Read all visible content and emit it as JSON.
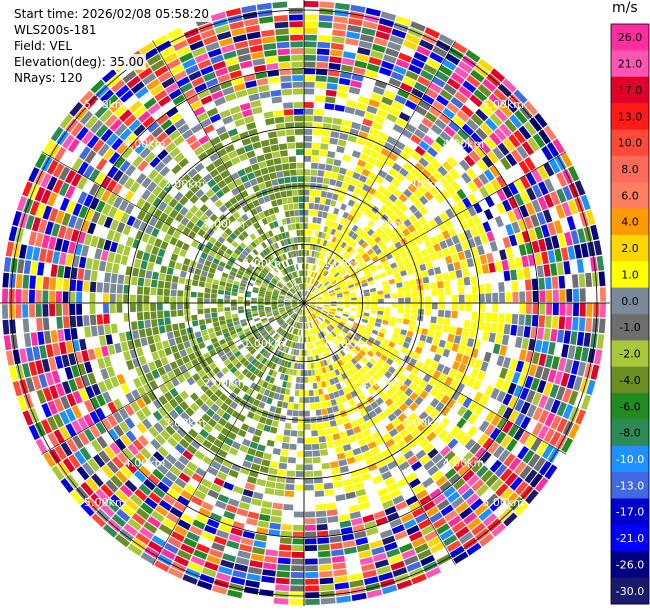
{
  "info": {
    "start_time": "Start time: 2026/02/08 05:58:20",
    "instrument": "WLS200s-181",
    "field": "Field: VEL",
    "elevation": "Elevation(deg): 35.00",
    "nrays": "NRays: 120"
  },
  "chart_data": {
    "type": "ppi",
    "nrays": 120,
    "range_rings_km": [
      1,
      2,
      3,
      4,
      5
    ],
    "ring_label_suffix": "km",
    "ring_labels_shown": [
      "1.00km",
      "2.00km",
      "3.00km",
      "4.00km",
      "5.00km"
    ],
    "colorbar": {
      "unit": "m/s",
      "ticks": [
        "26.0",
        "21.0",
        "17.0",
        "13.0",
        "10.0",
        "8.0",
        "6.0",
        "4.0",
        "2.0",
        "1.0",
        "0.0",
        "-1.0",
        "-2.0",
        "-4.0",
        "-6.0",
        "-8.0",
        "-10.0",
        "-13.0",
        "-17.0",
        "-21.0",
        "-26.0",
        "-30.0"
      ],
      "colors": [
        "#ff2ea0",
        "#ff55b5",
        "#e0002a",
        "#ff1a1a",
        "#ff4a3a",
        "#ff6a5a",
        "#ff7f60",
        "#ff9a00",
        "#ffd700",
        "#ffff00",
        "#7b8a9a",
        "#6e6e6e",
        "#a8c83a",
        "#6b8e23",
        "#228b22",
        "#2e8b57",
        "#1e90ff",
        "#4169e1",
        "#0000cd",
        "#0000ff",
        "#000080",
        "#191970"
      ]
    },
    "pattern": {
      "near_positive_dominant": "#ffff00",
      "near_negative_dominant": "#6b8e23",
      "near_positive_sector_deg": [
        -100,
        100
      ],
      "clean_radius_km": 3.2,
      "noise_start_km": 3.7
    }
  }
}
